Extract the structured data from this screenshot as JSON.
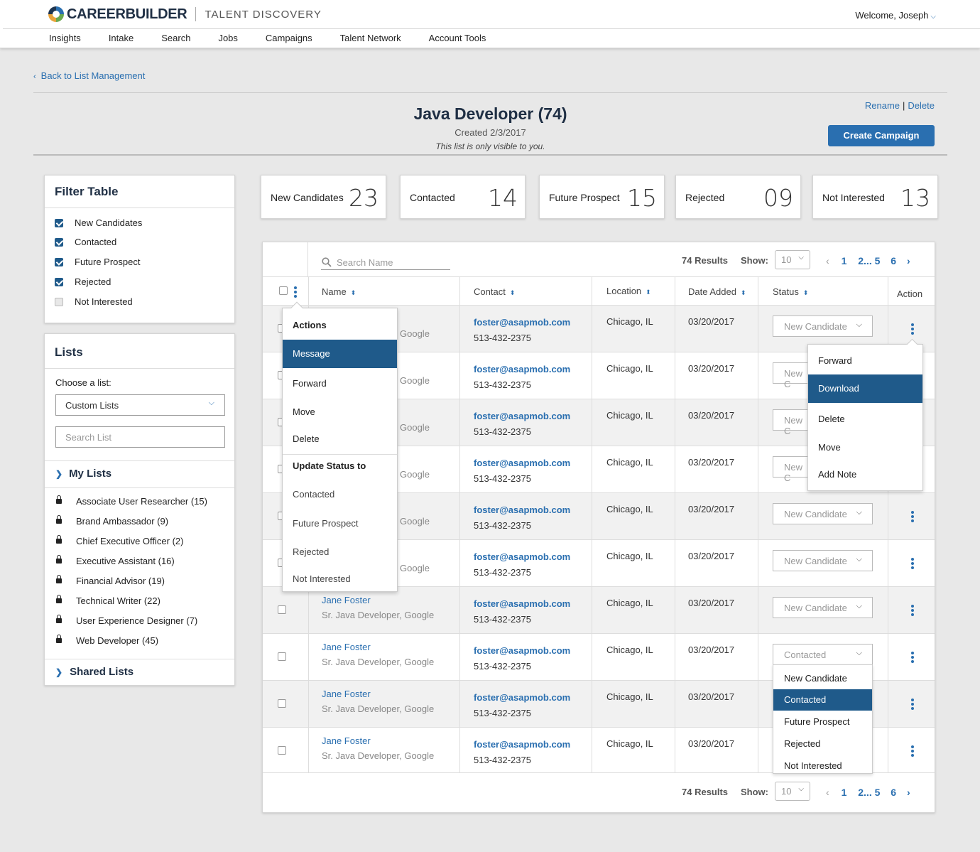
{
  "brand": {
    "name": "CAREERBUILDER",
    "product": "TALENT DISCOVERY"
  },
  "welcome": "Welcome, Joseph",
  "nav": [
    "Insights",
    "Intake",
    "Search",
    "Jobs",
    "Campaigns",
    "Talent Network",
    "Account Tools"
  ],
  "back_label": "Back to List Management",
  "list_header": {
    "title": "Java Developer (74)",
    "created": "Created 2/3/2017",
    "visibility": "This list is only visible to you.",
    "rename": "Rename",
    "delete": "Delete",
    "create_campaign": "Create Campaign"
  },
  "filter": {
    "title": "Filter Table",
    "items": [
      {
        "label": "New Candidates",
        "checked": true
      },
      {
        "label": "Contacted",
        "checked": true
      },
      {
        "label": "Future Prospect",
        "checked": true
      },
      {
        "label": "Rejected",
        "checked": true
      },
      {
        "label": "Not Interested",
        "checked": false
      }
    ]
  },
  "lists": {
    "title": "Lists",
    "choose_label": "Choose a list:",
    "select_value": "Custom Lists",
    "search_placeholder": "Search List",
    "my_lists_title": "My Lists",
    "items": [
      "Associate User Researcher (15)",
      "Brand Ambassador (9)",
      "Chief Executive Officer (2)",
      "Executive Assistant (16)",
      "Financial Advisor (19)",
      "Technical Writer (22)",
      "User Experience Designer (7)",
      "Web Developer (45)"
    ],
    "shared_title": "Shared Lists"
  },
  "stats": [
    {
      "label": "New Candidates",
      "value": "23"
    },
    {
      "label": "Contacted",
      "value": "14"
    },
    {
      "label": "Future Prospect",
      "value": "15"
    },
    {
      "label": "Rejected",
      "value": "09"
    },
    {
      "label": "Not Interested",
      "value": "13"
    }
  ],
  "table": {
    "search_placeholder": "Search Name",
    "results": "74 Results",
    "show_label": "Show:",
    "show_value": "10",
    "pages": {
      "p1": "1",
      "p2": "2",
      "ellipsis": "...",
      "p5": "5",
      "p6": "6",
      "prev": "‹",
      "next": "›"
    },
    "columns": {
      "name": "Name",
      "contact": "Contact",
      "location": "Location",
      "date": "Date Added",
      "status": "Status",
      "action": "Action"
    },
    "rows": [
      {
        "name": "",
        "title": "Google",
        "email": "foster@asapmob.com",
        "phone": "513-432-2375",
        "location": "Chicago, IL",
        "date": "03/20/2017",
        "status": "New Candidate"
      },
      {
        "name": "",
        "title": "Google",
        "email": "foster@asapmob.com",
        "phone": "513-432-2375",
        "location": "Chicago, IL",
        "date": "03/20/2017",
        "status": "New C"
      },
      {
        "name": "",
        "title": "Google",
        "email": "foster@asapmob.com",
        "phone": "513-432-2375",
        "location": "Chicago, IL",
        "date": "03/20/2017",
        "status": "New C"
      },
      {
        "name": "",
        "title": "Google",
        "email": "foster@asapmob.com",
        "phone": "513-432-2375",
        "location": "Chicago, IL",
        "date": "03/20/2017",
        "status": "New C"
      },
      {
        "name": "",
        "title": "Google",
        "email": "foster@asapmob.com",
        "phone": "513-432-2375",
        "location": "Chicago, IL",
        "date": "03/20/2017",
        "status": "New Candidate"
      },
      {
        "name": "",
        "title": "Google",
        "email": "foster@asapmob.com",
        "phone": "513-432-2375",
        "location": "Chicago, IL",
        "date": "03/20/2017",
        "status": "New Candidate"
      },
      {
        "name": "Jane Foster",
        "title": "Sr. Java Developer, Google",
        "email": "foster@asapmob.com",
        "phone": "513-432-2375",
        "location": "Chicago, IL",
        "date": "03/20/2017",
        "status": "New Candidate"
      },
      {
        "name": "Jane Foster",
        "title": "Sr. Java Developer, Google",
        "email": "foster@asapmob.com",
        "phone": "513-432-2375",
        "location": "Chicago, IL",
        "date": "03/20/2017",
        "status": "Contacted"
      },
      {
        "name": "Jane Foster",
        "title": "Sr. Java Developer, Google",
        "email": "foster@asapmob.com",
        "phone": "513-432-2375",
        "location": "Chicago, IL",
        "date": "03/20/2017",
        "status": ""
      },
      {
        "name": "Jane Foster",
        "title": "Sr. Java Developer, Google",
        "email": "foster@asapmob.com",
        "phone": "513-432-2375",
        "location": "Chicago, IL",
        "date": "03/20/2017",
        "status": ""
      }
    ]
  },
  "bulk_menu": {
    "header": "Actions",
    "items": [
      "Message",
      "Forward",
      "Move",
      "Delete"
    ],
    "active": "Message",
    "status_header": "Update Status to",
    "status_items": [
      "Contacted",
      "Future Prospect",
      "Rejected",
      "Not Interested"
    ]
  },
  "row_menu": {
    "items": [
      "Forward",
      "Download",
      "Delete",
      "Move",
      "Add Note"
    ],
    "active": "Download"
  },
  "status_dropdown": {
    "options": [
      "New Candidate",
      "Contacted",
      "Future Prospect",
      "Rejected",
      "Not Interested"
    ],
    "active": "Contacted"
  },
  "colors": {
    "accent": "#2a6fb0",
    "active": "#1f5a8a",
    "title": "#1f2f44"
  }
}
